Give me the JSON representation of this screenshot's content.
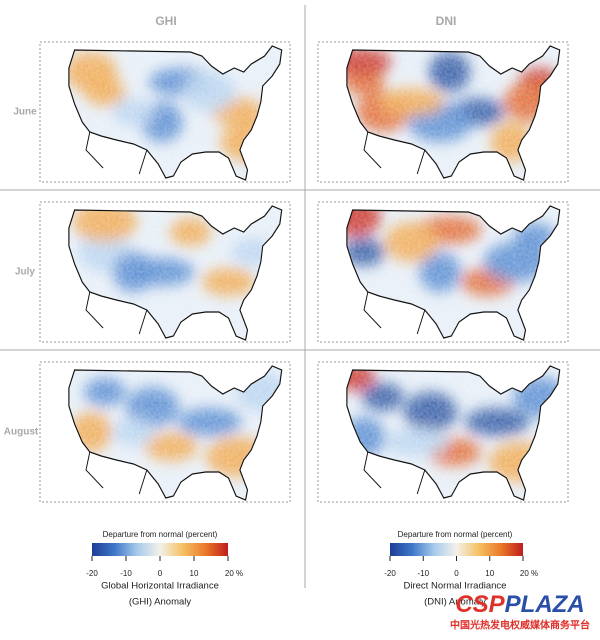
{
  "columns": [
    "GHI",
    "DNI"
  ],
  "rows": [
    "June",
    "July",
    "August"
  ],
  "legends": [
    {
      "title": "Departure from normal (percent)",
      "caption": [
        "Global Horizontal Irradiance",
        "(GHI) Anomaly"
      ]
    },
    {
      "title": "Departure from normal (percent)",
      "caption": [
        "Direct Normal Irradiance",
        "(DNI) Anomaly"
      ]
    }
  ],
  "colorbar": {
    "range": [
      -20,
      20
    ],
    "ticks": [
      -20,
      -10,
      0,
      10,
      {
        "value": 20,
        "label": "20 %"
      }
    ],
    "colors": [
      "#1d3e96",
      "#3f77c8",
      "#a7cbec",
      "#f3f1ea",
      "#f6c163",
      "#ea7a2a",
      "#c01d1d"
    ]
  },
  "watermark": {
    "logo": [
      "CSP",
      "PLAZA"
    ],
    "tagline": "中国光热发电权威媒体商务平台"
  }
}
